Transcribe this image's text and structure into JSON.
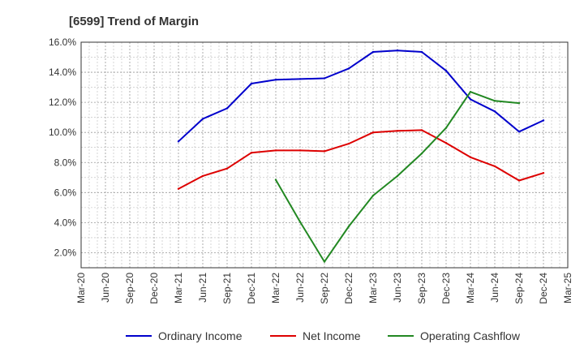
{
  "chart_data": {
    "type": "line",
    "title": "[6599]  Trend of Margin",
    "xlabel": "",
    "ylabel": "",
    "categories": [
      "Mar-20",
      "Jun-20",
      "Sep-20",
      "Dec-20",
      "Mar-21",
      "Jun-21",
      "Sep-21",
      "Dec-21",
      "Mar-22",
      "Jun-22",
      "Sep-22",
      "Dec-22",
      "Mar-23",
      "Jun-23",
      "Sep-23",
      "Dec-23",
      "Mar-24",
      "Jun-24",
      "Sep-24",
      "Dec-24",
      "Mar-25"
    ],
    "ylim": [
      1.0,
      16.0
    ],
    "yticks": [
      2.0,
      4.0,
      6.0,
      8.0,
      10.0,
      12.0,
      14.0,
      16.0
    ],
    "ytick_labels": [
      "2.0%",
      "4.0%",
      "6.0%",
      "8.0%",
      "10.0%",
      "12.0%",
      "14.0%",
      "16.0%"
    ],
    "grid": true,
    "legend_position": "bottom",
    "series": [
      {
        "name": "Ordinary Income",
        "color": "#0000cc",
        "values": [
          null,
          null,
          null,
          null,
          9.4,
          10.9,
          11.6,
          13.25,
          13.5,
          13.55,
          13.6,
          14.25,
          15.35,
          15.45,
          15.35,
          14.1,
          12.2,
          11.4,
          10.05,
          10.8,
          null
        ]
      },
      {
        "name": "Net Income",
        "color": "#dd0000",
        "values": [
          null,
          null,
          null,
          null,
          6.25,
          7.1,
          7.6,
          8.65,
          8.8,
          8.8,
          8.75,
          9.25,
          10.0,
          10.1,
          10.15,
          9.3,
          8.35,
          7.75,
          6.8,
          7.3,
          null
        ]
      },
      {
        "name": "Operating Cashflow",
        "color": "#228822",
        "values": [
          null,
          null,
          null,
          null,
          null,
          null,
          null,
          null,
          6.85,
          4.05,
          1.4,
          3.75,
          5.8,
          7.1,
          8.6,
          10.3,
          12.7,
          12.1,
          11.95,
          null,
          null
        ]
      }
    ]
  }
}
